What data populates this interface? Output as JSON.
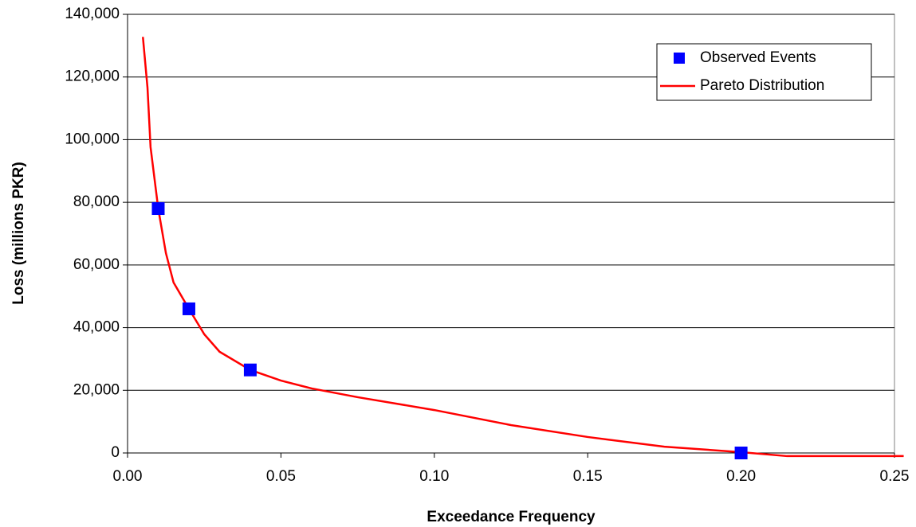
{
  "chart_data": {
    "type": "scatter-line",
    "x_label": "Exceedance Frequency",
    "y_label": "Loss (millions PKR)",
    "xlim": [
      0,
      0.25
    ],
    "ylim": [
      0,
      140000
    ],
    "xticks": [
      {
        "value": 0,
        "label": "0.00"
      },
      0.05,
      {
        "value": 0.1,
        "label": "0.10"
      },
      0.15,
      {
        "value": 0.2,
        "label": "0.20"
      },
      0.25
    ],
    "yticks": [
      0,
      {
        "value": 20000,
        "label": "20,000"
      },
      {
        "value": 40000,
        "label": "40,000"
      },
      {
        "value": 60000,
        "label": "60,000"
      },
      {
        "value": 80000,
        "label": "80,000"
      },
      {
        "value": 100000,
        "label": "100,000"
      },
      {
        "value": 120000,
        "label": "120,000"
      },
      {
        "value": 140000,
        "label": "140,000"
      }
    ],
    "grid": true,
    "legend": "upper right",
    "series": [
      {
        "name": "Observed Events",
        "color": "#0000ff",
        "style": "markers",
        "x": [
          0.01,
          0.02,
          0.04,
          0.2
        ],
        "values": [
          78000,
          46000,
          26500,
          0
        ]
      },
      {
        "name": "Pareto Distribution",
        "color": "#ff0000",
        "style": "line",
        "x": [
          0.005,
          0.0065,
          0.0075,
          0.01,
          0.0125,
          0.015,
          0.02,
          0.025,
          0.03,
          0.04,
          0.05,
          0.06,
          0.075,
          0.1,
          0.125,
          0.15,
          0.175,
          0.2,
          0.215,
          0.253
        ],
        "values": [
          132800,
          116600,
          97600,
          78000,
          63800,
          54400,
          46000,
          37900,
          32300,
          26500,
          23100,
          20600,
          17800,
          13700,
          8900,
          5100,
          2000,
          250,
          -1000,
          -1000
        ]
      }
    ]
  }
}
